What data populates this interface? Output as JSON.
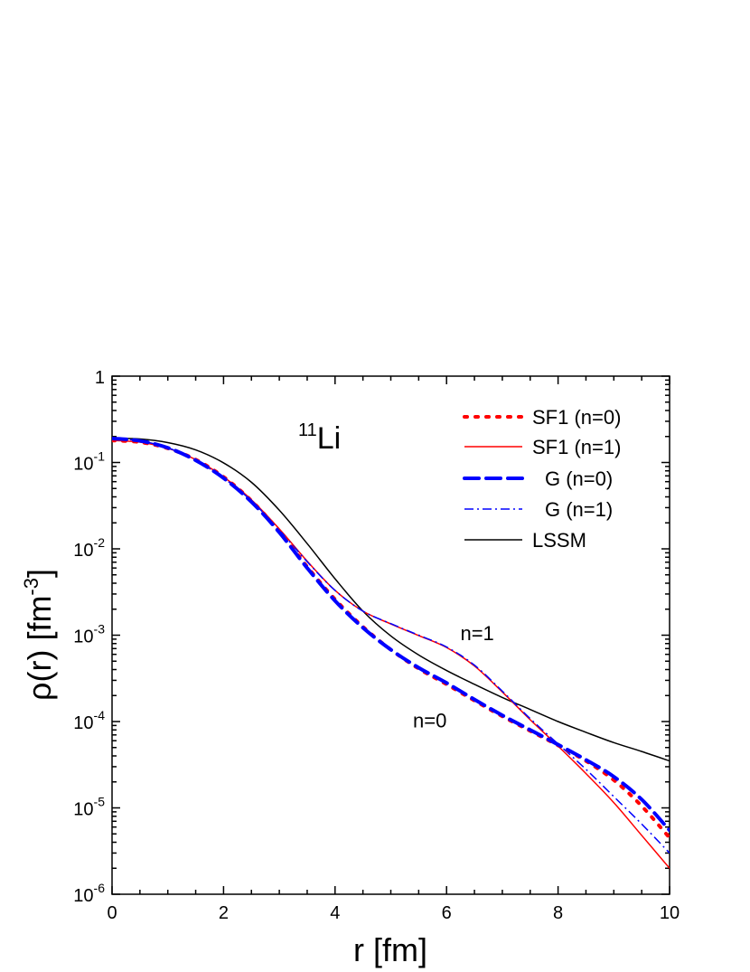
{
  "chart_data": {
    "type": "line",
    "xlabel": "r [fm]",
    "ylabel_main": "ρ(r) [fm",
    "ylabel_sup": "-3",
    "ylabel_tail": "]",
    "xlim": [
      0,
      10
    ],
    "ylim": [
      1e-06,
      1
    ],
    "yscale": "log",
    "grid": false,
    "legend_position": "top-right",
    "x_ticks": [
      {
        "value": 0,
        "label": "0"
      },
      {
        "value": 2,
        "label": "2"
      },
      {
        "value": 4,
        "label": "4"
      },
      {
        "value": 6,
        "label": "6"
      },
      {
        "value": 8,
        "label": "8"
      },
      {
        "value": 10,
        "label": "10"
      }
    ],
    "y_ticks": [
      {
        "value": 1,
        "base": "1",
        "exp": ""
      },
      {
        "value": 0.1,
        "base": "10",
        "exp": "-1"
      },
      {
        "value": 0.01,
        "base": "10",
        "exp": "-2"
      },
      {
        "value": 0.001,
        "base": "10",
        "exp": "-3"
      },
      {
        "value": 0.0001,
        "base": "10",
        "exp": "-4"
      },
      {
        "value": 1e-05,
        "base": "10",
        "exp": "-5"
      },
      {
        "value": 1e-06,
        "base": "10",
        "exp": "-6"
      }
    ],
    "nucleus": {
      "mass": "11",
      "symbol": "Li"
    },
    "annotations": [
      {
        "text": "n=1",
        "x": 6.55,
        "y": 0.00088
      },
      {
        "text": "n=0",
        "x": 5.7,
        "y": 8.5e-05
      }
    ],
    "series": [
      {
        "name": "SF1 (n=0)",
        "color": "#ff0000",
        "dash": "3,9",
        "width": 4,
        "x": [
          0,
          0.5,
          1,
          1.5,
          2,
          2.5,
          3,
          3.5,
          4,
          4.5,
          5,
          5.5,
          6,
          6.5,
          7,
          7.5,
          8,
          8.5,
          9,
          9.5,
          10
        ],
        "y": [
          0.18,
          0.172,
          0.146,
          0.108,
          0.068,
          0.036,
          0.016,
          0.0062,
          0.0026,
          0.00125,
          0.00068,
          0.00041,
          0.00027,
          0.000175,
          0.000115,
          7.8e-05,
          5.3e-05,
          3.5e-05,
          2.1e-05,
          1.05e-05,
          4.5e-06
        ]
      },
      {
        "name": "SF1 (n=1)",
        "color": "#ff0000",
        "dash": "",
        "width": 1.5,
        "x": [
          0,
          0.5,
          1,
          1.5,
          2,
          2.5,
          3,
          3.5,
          4,
          4.5,
          5,
          5.5,
          6,
          6.5,
          7,
          7.5,
          8,
          8.5,
          9,
          9.5,
          10
        ],
        "y": [
          0.18,
          0.172,
          0.146,
          0.108,
          0.068,
          0.037,
          0.017,
          0.0072,
          0.0033,
          0.0019,
          0.00135,
          0.00099,
          0.00072,
          0.00044,
          0.00022,
          0.000105,
          5.2e-05,
          2.5e-05,
          1.15e-05,
          4.8e-06,
          2e-06
        ]
      },
      {
        "name": "G (n=0)",
        "color": "#0000ff",
        "dash": "16,8",
        "width": 4,
        "x": [
          0,
          0.5,
          1,
          1.5,
          2,
          2.5,
          3,
          3.5,
          4,
          4.5,
          5,
          5.5,
          6,
          6.5,
          7,
          7.5,
          8,
          8.5,
          9,
          9.5,
          10
        ],
        "y": [
          0.19,
          0.178,
          0.148,
          0.106,
          0.066,
          0.035,
          0.0155,
          0.006,
          0.0025,
          0.00122,
          0.00068,
          0.00042,
          0.00028,
          0.00018,
          0.000118,
          8e-05,
          5.4e-05,
          3.6e-05,
          2.3e-05,
          1.25e-05,
          5.5e-06
        ]
      },
      {
        "name": "G (n=1)",
        "color": "#0000ff",
        "dash": "10,4,2,4",
        "width": 1.5,
        "x": [
          0,
          0.5,
          1,
          1.5,
          2,
          2.5,
          3,
          3.5,
          4,
          4.5,
          5,
          5.5,
          6,
          6.5,
          7,
          7.5,
          8,
          8.5,
          9,
          9.5,
          10
        ],
        "y": [
          0.19,
          0.178,
          0.148,
          0.106,
          0.066,
          0.036,
          0.0165,
          0.0071,
          0.0033,
          0.0019,
          0.00136,
          0.001,
          0.00073,
          0.00045,
          0.000225,
          0.000108,
          5.5e-05,
          2.8e-05,
          1.35e-05,
          6.5e-06,
          3e-06
        ]
      },
      {
        "name": "LSSM",
        "color": "#000000",
        "dash": "",
        "width": 1.5,
        "x": [
          0,
          0.5,
          1,
          1.5,
          2,
          2.5,
          3,
          3.5,
          4,
          4.5,
          5,
          5.5,
          6,
          6.5,
          7,
          7.5,
          8,
          8.5,
          9,
          9.5,
          10
        ],
        "y": [
          0.19,
          0.187,
          0.17,
          0.14,
          0.099,
          0.059,
          0.028,
          0.0115,
          0.0045,
          0.0019,
          0.00098,
          0.00059,
          0.00039,
          0.00027,
          0.00019,
          0.000138,
          0.0001,
          7.5e-05,
          5.7e-05,
          4.5e-05,
          3.5e-05
        ]
      }
    ]
  }
}
